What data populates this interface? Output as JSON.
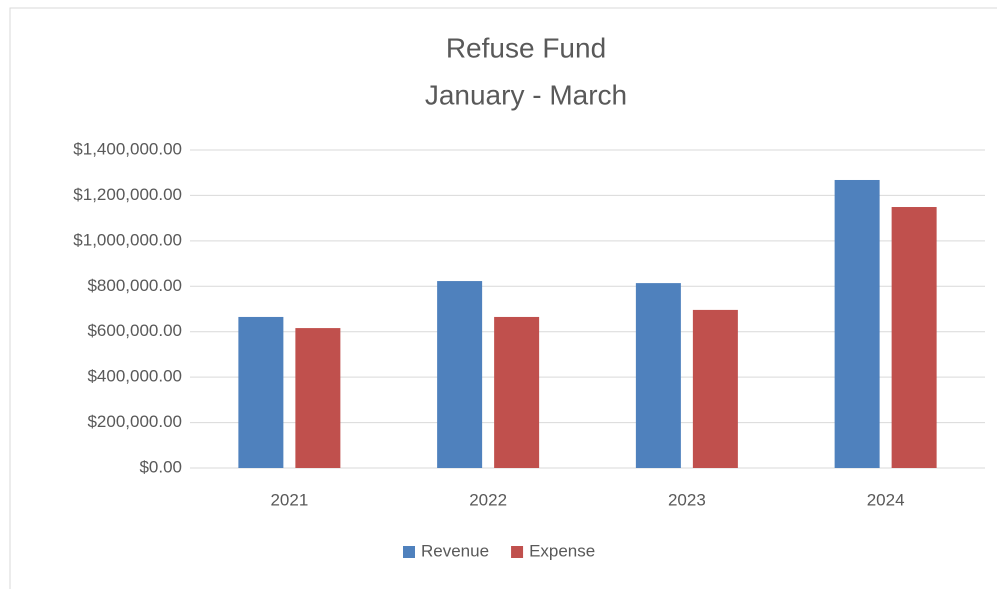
{
  "chart_data": {
    "type": "bar",
    "title": "Refuse Fund",
    "subtitle": "January - March",
    "categories": [
      "2021",
      "2022",
      "2023",
      "2024"
    ],
    "series": [
      {
        "name": "Revenue",
        "color": "#4f81bd",
        "values": [
          665000,
          823000,
          814000,
          1268000
        ]
      },
      {
        "name": "Expense",
        "color": "#c0504d",
        "values": [
          616000,
          665000,
          696000,
          1149000
        ]
      }
    ],
    "ylim": [
      0,
      1400000
    ],
    "yticks": [
      {
        "value": 0,
        "label": "$0.00"
      },
      {
        "value": 200000,
        "label": "$200,000.00"
      },
      {
        "value": 400000,
        "label": "$400,000.00"
      },
      {
        "value": 600000,
        "label": "$600,000.00"
      },
      {
        "value": 800000,
        "label": "$800,000.00"
      },
      {
        "value": 1000000,
        "label": "$1,000,000.00"
      },
      {
        "value": 1200000,
        "label": "$1,200,000.00"
      },
      {
        "value": 1400000,
        "label": "$1,400,000.00"
      }
    ],
    "grid": true,
    "legend": "bottom"
  }
}
